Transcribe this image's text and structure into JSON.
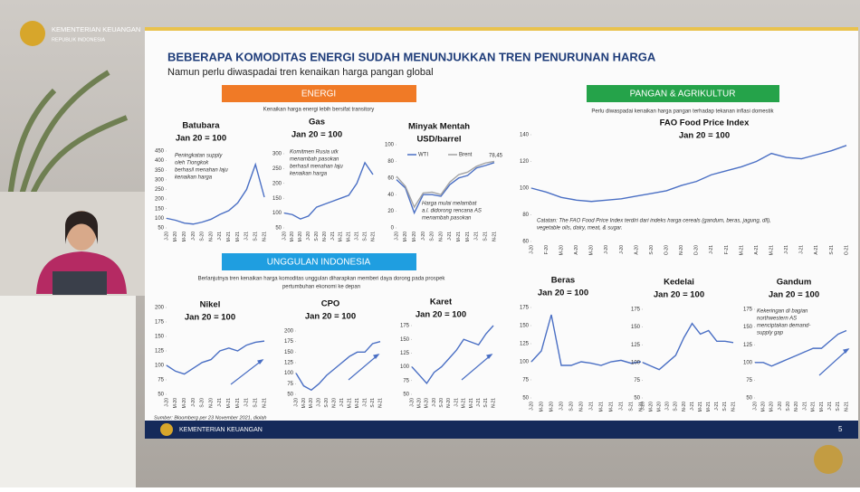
{
  "header": {
    "ministry": "KEMENTERIAN KEUANGAN",
    "republic": "REPUBLIK INDONESIA"
  },
  "slide": {
    "title": "BEBERAPA KOMODITAS ENERGI SUDAH MENUNJUKKAN TREN PENURUNAN HARGA",
    "subtitle": "Namun perlu diwaspadai tren kenaikan harga pangan global",
    "sections": [
      {
        "label": "ENERGI",
        "note": [
          "Kenaikan harga energi lebih bersifat transitory"
        ]
      },
      {
        "label": "PANGAN & AGRIKULTUR",
        "note": [
          "Perlu diwaspadai kenaikan harga pangan terhadap tekanan inflasi domestik"
        ]
      },
      {
        "label": "UNGGULAN INDONESIA",
        "note": [
          "Berlanjutnya tren kenaikan harga komoditas unggulan diharapkan memberi daya dorong pada prospek",
          "pertumbuhan ekonomi ke depan"
        ]
      }
    ],
    "source": "Sumber: Bloomberg per 23 November 2021, diolah",
    "footer": "KEMENTERIAN KEUANGAN",
    "page": "5"
  },
  "chart_data": [
    {
      "type": "line",
      "title": "Batubara",
      "subtitle": "Jan 20 = 100",
      "categories": [
        "J-20",
        "M-20",
        "M-20",
        "J-20",
        "S-20",
        "N-20",
        "J-21",
        "M-21",
        "M-21",
        "J-21",
        "S-21",
        "N-21"
      ],
      "series": [
        {
          "color": "#4a6fc4",
          "values": [
            100,
            90,
            75,
            70,
            80,
            95,
            120,
            140,
            180,
            250,
            380,
            210
          ]
        }
      ],
      "ylim": [
        50,
        450
      ],
      "yticks": [
        50,
        100,
        150,
        200,
        250,
        300,
        350,
        400,
        450
      ],
      "annotation": [
        "Peningkatan supply",
        "oleh Tiongkok",
        "berhasil menahan laju",
        "kenaikan harga"
      ]
    },
    {
      "type": "line",
      "title": "Gas",
      "subtitle": "Jan 20 = 100",
      "categories": [
        "J-20",
        "M-20",
        "M-20",
        "J-20",
        "S-20",
        "N-20",
        "J-21",
        "M-21",
        "M-21",
        "J-21",
        "S-21",
        "N-21"
      ],
      "series": [
        {
          "color": "#4a6fc4",
          "values": [
            100,
            95,
            80,
            90,
            120,
            130,
            140,
            150,
            160,
            200,
            270,
            230
          ]
        }
      ],
      "ylim": [
        50,
        300
      ],
      "yticks": [
        50,
        100,
        150,
        200,
        250,
        300
      ],
      "annotation": [
        "Komitmen Rusia utk",
        "menambah pasokan",
        "berhasil menahan laju",
        "kenaikan harga"
      ]
    },
    {
      "type": "line",
      "title": "Minyak Mentah",
      "subtitle": "USD/barrel",
      "categories": [
        "J-20",
        "M-20",
        "M-20",
        "J-20",
        "S-20",
        "N-20",
        "J-21",
        "M-21",
        "M-21",
        "J-21",
        "S-21",
        "N-21"
      ],
      "series": [
        {
          "name": "WTI",
          "color": "#4a6fc4",
          "values": [
            58,
            48,
            18,
            40,
            40,
            38,
            52,
            60,
            63,
            72,
            75,
            78.45
          ],
          "value_labels": [
            null,
            null,
            null,
            null,
            null,
            null,
            null,
            null,
            null,
            null,
            null,
            "78,45"
          ]
        },
        {
          "name": "Brent",
          "color": "#a3a3a3",
          "values": [
            62,
            50,
            25,
            42,
            43,
            40,
            55,
            64,
            67,
            74,
            78,
            80
          ]
        }
      ],
      "ylim": [
        0,
        100
      ],
      "yticks": [
        0,
        20,
        40,
        60,
        80,
        100
      ],
      "annotation": [
        "Harga mulai melambat",
        "a.l. didorong rencana AS",
        "menambah pasokan"
      ]
    },
    {
      "type": "line",
      "title": "FAO Food Price Index",
      "subtitle": "Jan 20 = 100",
      "categories": [
        "J-20",
        "F-20",
        "M-20",
        "A-20",
        "M-20",
        "J-20",
        "J-20",
        "A-20",
        "S-20",
        "O-20",
        "N-20",
        "D-20",
        "J-21",
        "F-21",
        "M-21",
        "A-21",
        "M-21",
        "J-21",
        "J-21",
        "A-21",
        "S-21",
        "O-21"
      ],
      "series": [
        {
          "color": "#4a6fc4",
          "values": [
            100,
            97,
            93,
            91,
            90,
            91,
            92,
            94,
            96,
            98,
            102,
            105,
            110,
            113,
            116,
            120,
            126,
            123,
            122,
            125,
            128,
            132
          ]
        }
      ],
      "ylim": [
        60,
        140
      ],
      "yticks": [
        60,
        80,
        100,
        120,
        140
      ],
      "annotation": [
        "Catatan: The FAO Food Price Index terdiri dari indeks harga cereals (gandum, beras, jagung, dll),",
        "vegetable oils, dairy, meat, & sugar."
      ]
    },
    {
      "type": "line",
      "title": "Nikel",
      "subtitle": "Jan 20 = 100",
      "categories": [
        "J-20",
        "M-20",
        "M-20",
        "J-20",
        "S-20",
        "N-20",
        "J-21",
        "M-21",
        "M-21",
        "J-21",
        "S-21",
        "N-21"
      ],
      "series": [
        {
          "color": "#4a6fc4",
          "values": [
            100,
            90,
            85,
            95,
            105,
            110,
            125,
            130,
            125,
            135,
            140,
            142
          ]
        }
      ],
      "ylim": [
        50,
        200
      ],
      "yticks": [
        50,
        75,
        100,
        125,
        150,
        175,
        200
      ]
    },
    {
      "type": "line",
      "title": "CPO",
      "subtitle": "Jan 20 = 100",
      "categories": [
        "J-20",
        "M-20",
        "M-20",
        "J-20",
        "S-20",
        "N-20",
        "J-21",
        "M-21",
        "M-21",
        "J-21",
        "S-21",
        "N-21"
      ],
      "series": [
        {
          "color": "#4a6fc4",
          "values": [
            100,
            70,
            60,
            75,
            95,
            110,
            125,
            140,
            150,
            150,
            170,
            175
          ]
        }
      ],
      "ylim": [
        50,
        200
      ],
      "yticks": [
        50,
        75,
        100,
        125,
        150,
        175,
        200
      ]
    },
    {
      "type": "line",
      "title": "Karet",
      "subtitle": "Jan 20 = 100",
      "categories": [
        "J-20",
        "M-20",
        "M-20",
        "J-20",
        "S-20",
        "N-20",
        "J-21",
        "M-21",
        "M-21",
        "J-21",
        "S-21",
        "N-21"
      ],
      "series": [
        {
          "color": "#4a6fc4",
          "values": [
            100,
            85,
            70,
            90,
            100,
            115,
            130,
            150,
            145,
            140,
            160,
            175
          ]
        }
      ],
      "ylim": [
        50,
        175
      ],
      "yticks": [
        50,
        75,
        100,
        125,
        150,
        175
      ]
    },
    {
      "type": "line",
      "title": "Beras",
      "subtitle": "Jan 20 = 100",
      "categories": [
        "J-20",
        "M-20",
        "M-20",
        "J-20",
        "S-20",
        "N-20",
        "J-21",
        "M-21",
        "M-21",
        "J-21",
        "S-21",
        "N-21"
      ],
      "series": [
        {
          "color": "#4a6fc4",
          "values": [
            100,
            115,
            165,
            95,
            95,
            100,
            98,
            95,
            100,
            102,
            98,
            100
          ]
        }
      ],
      "ylim": [
        50,
        175
      ],
      "yticks": [
        50,
        75,
        100,
        125,
        150,
        175
      ]
    },
    {
      "type": "line",
      "title": "Kedelai",
      "subtitle": "Jan 20 = 100",
      "categories": [
        "J-20",
        "M-20",
        "M-20",
        "J-20",
        "S-20",
        "N-20",
        "J-21",
        "M-21",
        "M-21",
        "J-21",
        "S-21",
        "N-21"
      ],
      "series": [
        {
          "color": "#4a6fc4",
          "values": [
            100,
            95,
            90,
            100,
            110,
            135,
            155,
            140,
            145,
            130,
            130,
            128
          ]
        }
      ],
      "ylim": [
        50,
        175
      ],
      "yticks": [
        50,
        75,
        100,
        125,
        150,
        175
      ]
    },
    {
      "type": "line",
      "title": "Gandum",
      "subtitle": "Jan 20 = 100",
      "categories": [
        "J-20",
        "M-20",
        "M-20",
        "J-20",
        "S-20",
        "N-20",
        "J-21",
        "M-21",
        "M-21",
        "J-21",
        "S-21",
        "N-21"
      ],
      "series": [
        {
          "color": "#4a6fc4",
          "values": [
            100,
            100,
            95,
            100,
            105,
            110,
            115,
            120,
            120,
            130,
            140,
            145
          ]
        }
      ],
      "ylim": [
        50,
        175
      ],
      "yticks": [
        50,
        75,
        100,
        125,
        150,
        175
      ],
      "annotation": [
        "Kekeringan di bagian",
        "northwestern AS",
        "menciptakan demand-",
        "supply gap"
      ]
    }
  ]
}
